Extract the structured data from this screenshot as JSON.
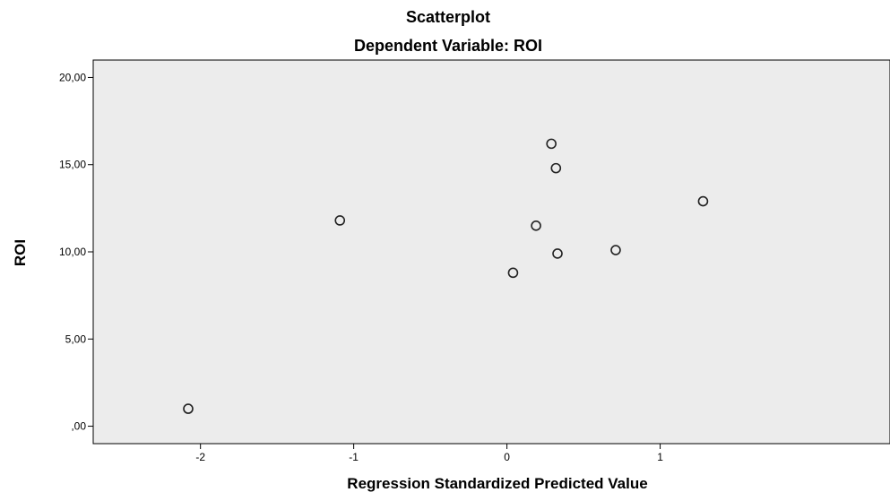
{
  "chart_data": {
    "type": "scatter",
    "title": "Scatterplot",
    "subtitle": "Dependent Variable: ROI",
    "xlabel": "Regression Standardized Predicted Value",
    "ylabel": "ROI",
    "xlim": [
      -2.7,
      2.5
    ],
    "ylim": [
      -1.0,
      21.0
    ],
    "x_ticks": [
      -2,
      -1,
      0,
      1
    ],
    "x_tick_labels": [
      "-2",
      "-1",
      "0",
      "1"
    ],
    "y_ticks": [
      0,
      5,
      10,
      15,
      20
    ],
    "y_tick_labels": [
      ",00",
      "5,00",
      "10,00",
      "15,00",
      "20,00"
    ],
    "grid": false,
    "legend": "none",
    "plot_background": "#ececec",
    "marker_color": "#222222",
    "points": [
      {
        "x": -2.08,
        "y": 1.0
      },
      {
        "x": -1.09,
        "y": 11.8
      },
      {
        "x": 0.04,
        "y": 8.8
      },
      {
        "x": 0.19,
        "y": 11.5
      },
      {
        "x": 0.29,
        "y": 16.2
      },
      {
        "x": 0.32,
        "y": 14.8
      },
      {
        "x": 0.33,
        "y": 9.9
      },
      {
        "x": 0.71,
        "y": 10.1
      },
      {
        "x": 1.28,
        "y": 12.9
      }
    ]
  }
}
